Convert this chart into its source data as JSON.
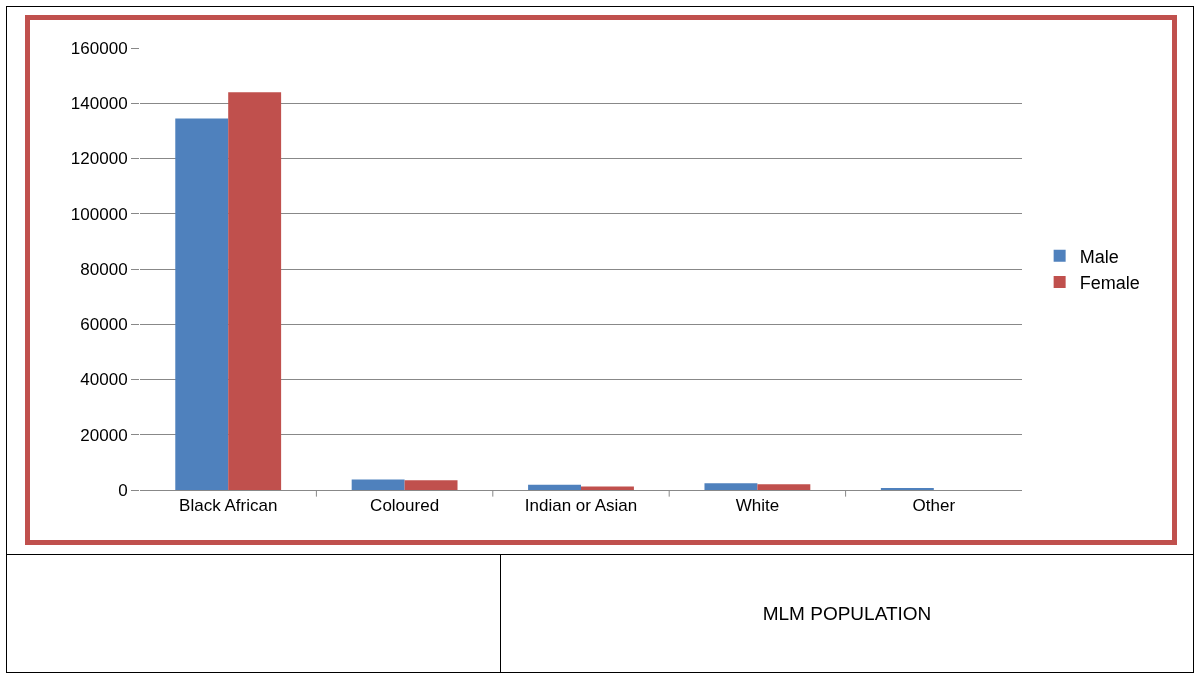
{
  "chart_data": {
    "type": "bar",
    "categories": [
      "Black African",
      "Coloured",
      "Indian or Asian",
      "White",
      "Other"
    ],
    "series": [
      {
        "name": "Male",
        "color": "#4f81bd",
        "values": [
          134500,
          3800,
          1900,
          2400,
          500
        ]
      },
      {
        "name": "Female",
        "color": "#c0504d",
        "values": [
          144000,
          3500,
          1300,
          2100,
          0
        ]
      }
    ],
    "ylim": [
      0,
      160000
    ],
    "yticks": [
      0,
      20000,
      40000,
      60000,
      80000,
      100000,
      120000,
      140000,
      160000
    ],
    "grid": "y",
    "legend": "right",
    "annotations": [
      "MLM POPULATION"
    ]
  }
}
